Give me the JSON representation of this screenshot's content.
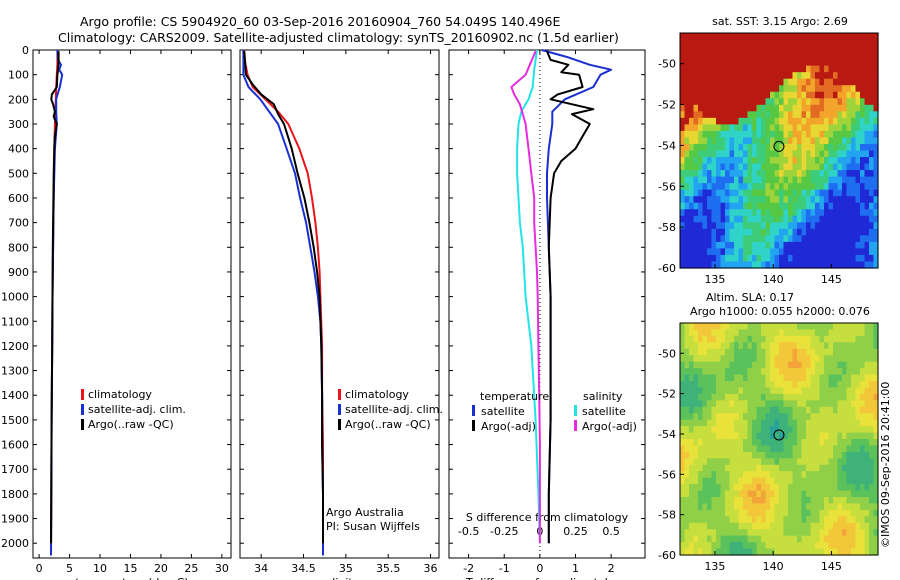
{
  "header": {
    "line1": "Argo profile: CS 5904920_60 03-Sep-2016 20160904_760 54.049S 140.496E",
    "line2": "Climatology: CARS2009. Satellite-adjusted climatology: synTS_20160902.nc (1.5d earlier)"
  },
  "colors": {
    "climatology": "#e8141a",
    "satellite": "#1a2fd0",
    "argo": "#000000",
    "satellite_salinity": "#22e4e8",
    "argo_salinity": "#e62ce0"
  },
  "depth_ticks": [
    "0",
    "100",
    "200",
    "300",
    "400",
    "500",
    "600",
    "700",
    "800",
    "900",
    "1000",
    "1100",
    "1200",
    "1300",
    "1400",
    "1500",
    "1600",
    "1700",
    "1800",
    "1900",
    "2000"
  ],
  "chart_data": [
    {
      "type": "line",
      "id": "temperature",
      "xlabel": "temperature (deg C)",
      "xlim": [
        -1,
        31.5
      ],
      "ylim": [
        2060,
        0
      ],
      "xticks": [
        "0",
        "5",
        "10",
        "15",
        "20",
        "25",
        "30"
      ],
      "xtick_values": [
        0,
        5,
        10,
        15,
        20,
        25,
        30
      ],
      "legend": [
        "climatology",
        "satellite-adj. clim.",
        "Argo(..raw -QC)"
      ],
      "series": [
        {
          "name": "climatology",
          "color": "climatology",
          "depth": [
            0,
            60,
            100,
            150,
            200,
            300,
            400,
            600,
            800,
            1000,
            1200,
            1500,
            1800,
            2050
          ],
          "values": [
            3.0,
            3.0,
            2.9,
            2.8,
            2.75,
            2.6,
            2.5,
            2.4,
            2.3,
            2.2,
            2.15,
            2.05,
            2.0,
            1.95
          ]
        },
        {
          "name": "satellite-adj. clim.",
          "color": "satellite",
          "depth": [
            0,
            40,
            60,
            80,
            100,
            150,
            190,
            200,
            250,
            300,
            400,
            600,
            800,
            1000,
            1200,
            1500,
            1800,
            2050
          ],
          "values": [
            3.0,
            3.1,
            3.6,
            3.3,
            3.8,
            3.4,
            2.9,
            2.8,
            2.8,
            2.9,
            2.6,
            2.4,
            2.3,
            2.2,
            2.15,
            2.05,
            2.0,
            1.95
          ]
        },
        {
          "name": "Argo(..raw -QC)",
          "color": "argo",
          "depth": [
            5,
            50,
            80,
            100,
            150,
            180,
            200,
            220,
            250,
            270,
            300,
            350,
            400,
            500,
            600,
            800,
            1000,
            1200,
            1500,
            1800,
            2000
          ],
          "values": [
            3.2,
            3.2,
            3.1,
            3.0,
            2.9,
            2.1,
            2.0,
            2.3,
            2.6,
            2.4,
            2.9,
            2.6,
            2.5,
            2.4,
            2.35,
            2.25,
            2.2,
            2.15,
            2.05,
            2.0,
            1.95
          ]
        }
      ]
    },
    {
      "type": "line",
      "id": "salinity",
      "xlabel": "salinity",
      "xlim": [
        33.75,
        36.1
      ],
      "ylim": [
        2060,
        0
      ],
      "xticks": [
        "34",
        "34.5",
        "35",
        "35.5",
        "36"
      ],
      "xtick_values": [
        34,
        34.5,
        35,
        35.5,
        36
      ],
      "legend": [
        "climatology",
        "satellite-adj. clim.",
        "Argo(..raw -QC)"
      ],
      "annotation": [
        "Argo Australia",
        "PI: Susan Wijffels"
      ],
      "series": [
        {
          "name": "climatology",
          "color": "climatology",
          "depth": [
            0,
            50,
            100,
            150,
            200,
            250,
            300,
            400,
            500,
            600,
            700,
            800,
            900,
            1000,
            1200,
            1400,
            1600,
            1800,
            2050
          ],
          "values": [
            33.8,
            33.81,
            33.84,
            33.9,
            34.05,
            34.2,
            34.32,
            34.45,
            34.55,
            34.6,
            34.64,
            34.67,
            34.69,
            34.7,
            34.72,
            34.72,
            34.73,
            34.73,
            34.73
          ]
        },
        {
          "name": "satellite-adj. clim.",
          "color": "satellite",
          "depth": [
            0,
            50,
            100,
            150,
            200,
            300,
            400,
            500,
            600,
            700,
            800,
            900,
            1000,
            1100,
            1200,
            1400,
            1600,
            1800,
            2050
          ],
          "values": [
            33.79,
            33.79,
            33.79,
            33.85,
            33.99,
            34.2,
            34.3,
            34.4,
            34.46,
            34.53,
            34.58,
            34.63,
            34.67,
            34.7,
            34.71,
            34.72,
            34.72,
            34.73,
            34.73
          ]
        },
        {
          "name": "Argo(..raw -QC)",
          "color": "argo",
          "depth": [
            5,
            50,
            100,
            140,
            180,
            220,
            260,
            300,
            400,
            500,
            600,
            700,
            800,
            900,
            1000,
            1200,
            1400,
            1600,
            1800,
            2000
          ],
          "values": [
            33.8,
            33.81,
            33.82,
            33.9,
            34.0,
            34.15,
            34.2,
            34.27,
            34.36,
            34.43,
            34.51,
            34.57,
            34.62,
            34.66,
            34.69,
            34.71,
            34.72,
            34.72,
            34.73,
            34.73
          ]
        }
      ]
    },
    {
      "type": "line",
      "id": "difference",
      "xlabel": "T difference from climatology",
      "top_label": "S difference from climatology",
      "xlim": [
        -2.55,
        2.95
      ],
      "ylim": [
        2060,
        0
      ],
      "xticks": [
        "-2",
        "-1",
        "0",
        "1",
        "2"
      ],
      "xtick_values": [
        -2,
        -1,
        0,
        1,
        2
      ],
      "top_ticks": [
        "-0.5",
        "-0.25",
        "0",
        "0.25",
        "0.5"
      ],
      "top_tick_values": [
        -0.5,
        -0.25,
        0,
        0.25,
        0.5
      ],
      "legend_left_title": "temperature",
      "legend_right_title": "salinity",
      "legend_left": [
        "satellite",
        "Argo(-adj)"
      ],
      "legend_right": [
        "satellite",
        "Argo(-adj)"
      ],
      "series": [
        {
          "name": "satellite",
          "group": "temperature",
          "color": "satellite",
          "depth": [
            0,
            30,
            60,
            80,
            100,
            150,
            200,
            250,
            300,
            400,
            500,
            600,
            800,
            1000,
            1200,
            1500,
            1800,
            2000
          ],
          "values": [
            0.05,
            0.8,
            1.4,
            2.0,
            1.7,
            1.5,
            0.7,
            0.35,
            0.35,
            0.25,
            0.2,
            0.2,
            0.25,
            0.3,
            0.3,
            0.3,
            0.25,
            0.25
          ]
        },
        {
          "name": "Argo(-adj)",
          "group": "temperature",
          "color": "argo",
          "depth": [
            5,
            40,
            60,
            90,
            100,
            150,
            180,
            200,
            240,
            260,
            300,
            350,
            400,
            450,
            500,
            600,
            800,
            1000,
            1200,
            1500,
            1800,
            2000
          ],
          "values": [
            0.2,
            0.3,
            0.8,
            0.6,
            1.1,
            1.2,
            0.5,
            0.3,
            1.5,
            0.9,
            1.4,
            1.2,
            1.0,
            0.6,
            0.4,
            0.3,
            0.25,
            0.3,
            0.3,
            0.3,
            0.25,
            0.25
          ]
        },
        {
          "name": "satellite",
          "group": "salinity",
          "color": "satellite_salinity",
          "depth": [
            0,
            80,
            150,
            200,
            250,
            300,
            400,
            500,
            600,
            700,
            800,
            1000,
            1200,
            1500,
            1800,
            2000
          ],
          "values": [
            -0.02,
            -0.04,
            -0.05,
            -0.08,
            -0.13,
            -0.15,
            -0.16,
            -0.16,
            -0.15,
            -0.14,
            -0.12,
            -0.1,
            -0.06,
            -0.03,
            -0.01,
            0.0
          ]
        },
        {
          "name": "Argo(-adj)",
          "group": "salinity",
          "color": "argo_salinity",
          "depth": [
            5,
            100,
            150,
            180,
            220,
            260,
            300,
            400,
            500,
            600,
            700,
            800,
            900,
            1000,
            1200,
            1400,
            1600,
            1800,
            2000
          ],
          "values": [
            -0.03,
            -0.1,
            -0.2,
            -0.18,
            -0.14,
            -0.12,
            -0.1,
            -0.08,
            -0.06,
            -0.04,
            -0.04,
            -0.03,
            -0.02,
            -0.015,
            -0.01,
            -0.005,
            0.0,
            0.0,
            0.0
          ]
        }
      ]
    },
    {
      "type": "heatmap",
      "id": "sst_map",
      "title": "sat. SST: 3.15 Argo: 2.69",
      "xlim": [
        132,
        149
      ],
      "ylim": [
        -60,
        -48.5
      ],
      "xticks": [
        "135",
        "140",
        "145"
      ],
      "xtick_values": [
        135,
        140,
        145
      ],
      "yticks": [
        "-50",
        "-52",
        "-54",
        "-56",
        "-58",
        "-60"
      ],
      "ytick_values": [
        -50,
        -52,
        -54,
        -56,
        -58,
        -60
      ],
      "marker": {
        "lon": 140.496,
        "lat": -54.049
      }
    },
    {
      "type": "heatmap",
      "id": "sla_map",
      "title_lines": [
        "Altim. SLA: 0.17",
        "Argo h1000: 0.055 h2000: 0.076"
      ],
      "xlim": [
        132,
        149
      ],
      "ylim": [
        -60,
        -48.5
      ],
      "xticks": [
        "135",
        "140",
        "145"
      ],
      "xtick_values": [
        135,
        140,
        145
      ],
      "yticks": [
        "-50",
        "-52",
        "-54",
        "-56",
        "-58",
        "-60"
      ],
      "ytick_values": [
        -50,
        -52,
        -54,
        -56,
        -58,
        -60
      ],
      "marker": {
        "lon": 140.496,
        "lat": -54.049
      }
    }
  ],
  "footer": {
    "credit": "©IMOS 09-Sep-2016 20:41:00"
  }
}
